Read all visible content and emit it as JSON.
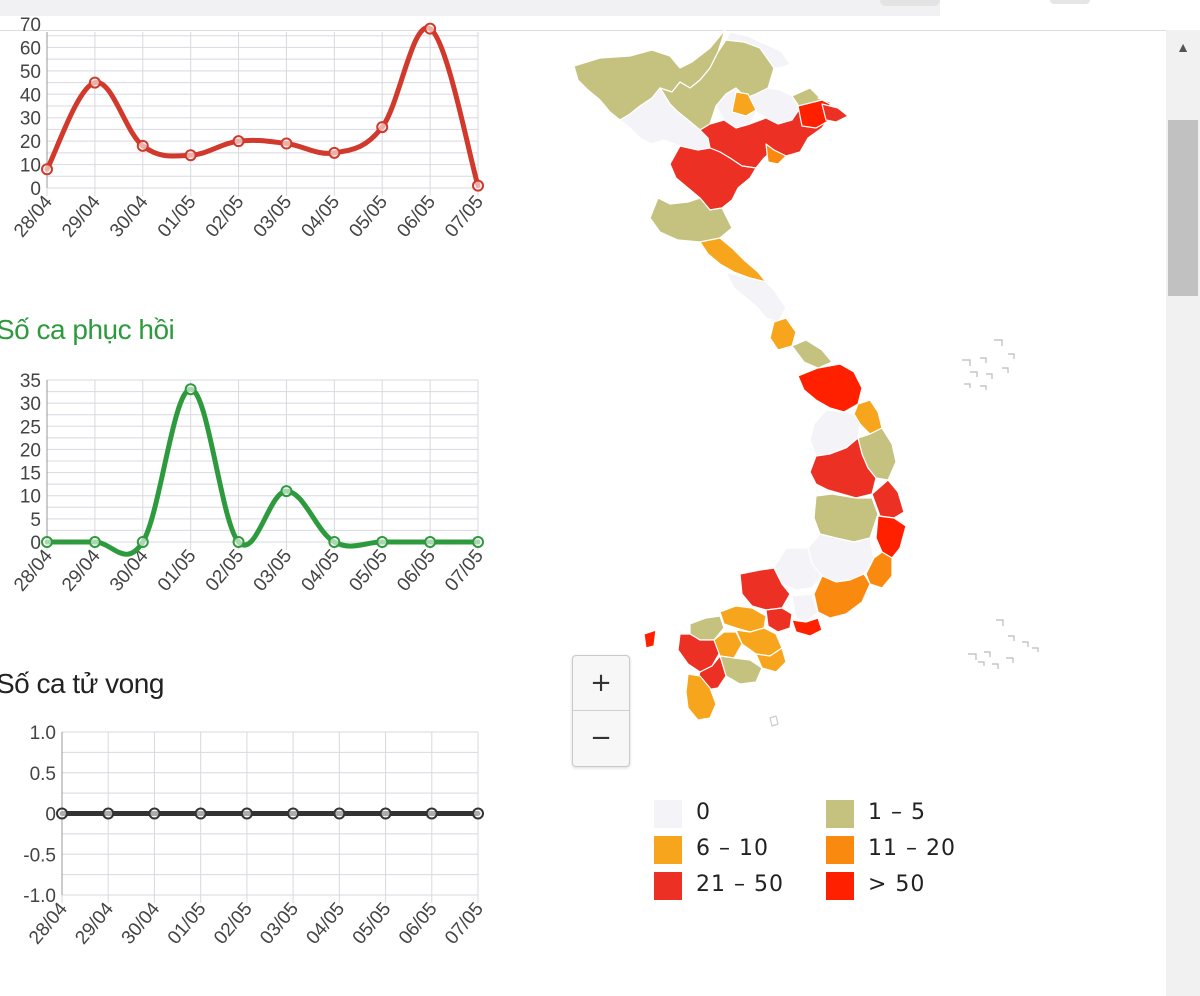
{
  "colors": {
    "cases": "#d0392b",
    "recovered": "#2e9a3e",
    "deaths": "#333333",
    "grid": "#d8d8e0"
  },
  "dates": [
    "28/04",
    "29/04",
    "30/04",
    "01/05",
    "02/05",
    "03/05",
    "04/05",
    "05/05",
    "06/05",
    "07/05"
  ],
  "sections": {
    "recovered_title": "Số ca phục hồi",
    "deaths_title": "Số ca tử vong"
  },
  "chart_data": [
    {
      "type": "line",
      "categories": [
        "28/04",
        "29/04",
        "30/04",
        "01/05",
        "02/05",
        "03/05",
        "04/05",
        "05/05",
        "06/05",
        "07/05"
      ],
      "values": [
        8,
        45,
        18,
        14,
        20,
        19,
        15,
        26,
        68,
        1
      ],
      "title": "",
      "ylim": [
        0,
        70
      ],
      "yticks": [
        "0",
        "10",
        "20",
        "30",
        "40",
        "50",
        "60",
        "70"
      ],
      "grid": true
    },
    {
      "type": "line",
      "categories": [
        "28/04",
        "29/04",
        "30/04",
        "01/05",
        "02/05",
        "03/05",
        "04/05",
        "05/05",
        "06/05",
        "07/05"
      ],
      "values": [
        0,
        0,
        0,
        33,
        0,
        11,
        0,
        0,
        0,
        0
      ],
      "title": "Số ca phục hồi",
      "ylim": [
        0,
        35
      ],
      "yticks": [
        "0",
        "5",
        "10",
        "15",
        "20",
        "25",
        "30",
        "35"
      ],
      "grid": true
    },
    {
      "type": "line",
      "categories": [
        "28/04",
        "29/04",
        "30/04",
        "01/05",
        "02/05",
        "03/05",
        "04/05",
        "05/05",
        "06/05",
        "07/05"
      ],
      "values": [
        0,
        0,
        0,
        0,
        0,
        0,
        0,
        0,
        0,
        0
      ],
      "title": "Số ca tử vong",
      "ylim": [
        -1.0,
        1.0
      ],
      "yticks": [
        "-1.0",
        "-0.5",
        "0",
        "0.5",
        "1.0"
      ],
      "grid": true
    }
  ],
  "map": {
    "zoom_in": "+",
    "zoom_out": "−",
    "legend": [
      {
        "label": "0",
        "color": "#f4f4f8"
      },
      {
        "label": "1 – 5",
        "color": "#c5c17f"
      },
      {
        "label": "6 – 10",
        "color": "#f7a51c"
      },
      {
        "label": "11 – 20",
        "color": "#f98a0f"
      },
      {
        "label": "21 – 50",
        "color": "#ec3023"
      },
      {
        "label": "> 50",
        "color": "#ff2000"
      }
    ]
  },
  "scrollbar": {
    "up_arrow": "▲"
  }
}
